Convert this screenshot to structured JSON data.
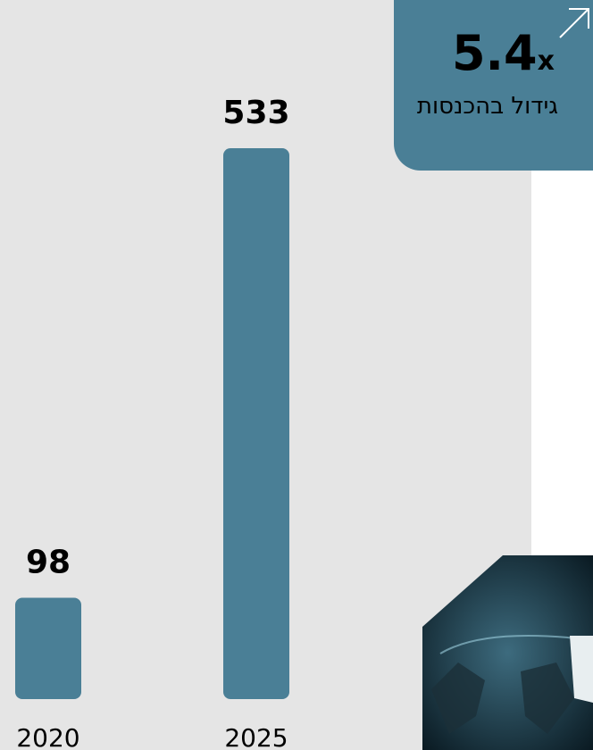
{
  "chart_data": {
    "type": "bar",
    "categories": [
      "2020",
      "2025"
    ],
    "values": [
      98,
      533
    ],
    "color": "#4a7f96"
  },
  "highlight": {
    "value": "5.4",
    "unit": "x",
    "label": "גידול בהכנסות"
  }
}
